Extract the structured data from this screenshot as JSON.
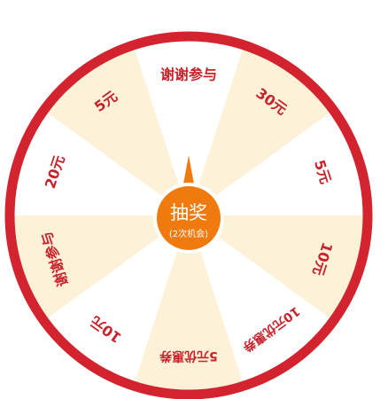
{
  "wheel": {
    "prizes": [
      "谢谢参与",
      "30元",
      "5元",
      "10元",
      "10元优惠券",
      "5元优惠券",
      "10元",
      "谢谢参与",
      "20元",
      "5元"
    ],
    "colors": {
      "rim": "#d2232e",
      "segment_light": "#fdf1d8",
      "segment_white": "#ffffff",
      "label": "#c8232c",
      "button": "#f07a0e",
      "button_ring": "#ffffff",
      "button_text": "#ffffff"
    }
  },
  "start_button": {
    "title": "抽奖",
    "subtitle": "(2次机会)"
  }
}
